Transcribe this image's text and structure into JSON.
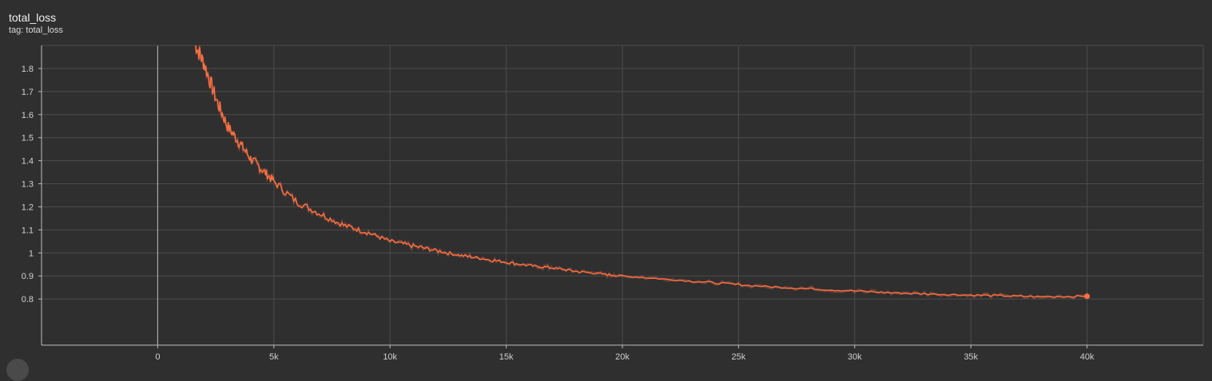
{
  "card": {
    "title": "total_loss",
    "tag": "tag: total_loss"
  },
  "colors": {
    "background": "#2f2f2f",
    "grid": "#4c4c4c",
    "axis": "#bdbdbd",
    "series": "#ff7043"
  },
  "chart_data": {
    "type": "line",
    "title": "total_loss",
    "xlabel": "",
    "ylabel": "",
    "xlim": [
      -5000,
      45000
    ],
    "ylim": [
      0.6,
      1.9
    ],
    "xticks": [
      0,
      5000,
      10000,
      15000,
      20000,
      25000,
      30000,
      35000,
      40000
    ],
    "xtick_labels": [
      "0",
      "5k",
      "10k",
      "15k",
      "20k",
      "25k",
      "30k",
      "35k",
      "40k"
    ],
    "yticks": [
      0.8,
      0.9,
      1.0,
      1.1,
      1.2,
      1.3,
      1.4,
      1.5,
      1.6,
      1.7,
      1.8
    ],
    "ytick_labels": [
      "0.8",
      "0.9",
      "1",
      "1.1",
      "1.2",
      "1.3",
      "1.4",
      "1.5",
      "1.6",
      "1.7",
      "1.8"
    ],
    "grid": true,
    "series": [
      {
        "x": [
          1600,
          2000,
          2500,
          3000,
          3500,
          4000,
          4500,
          5000,
          6000,
          7000,
          8000,
          9000,
          10000,
          11000,
          12000,
          13000,
          14000,
          15000,
          16000,
          17000,
          18000,
          19000,
          20000,
          22000,
          24000,
          26000,
          28000,
          30000,
          32000,
          34000,
          36000,
          38000,
          40000
        ],
        "y": [
          1.91,
          1.82,
          1.67,
          1.55,
          1.48,
          1.41,
          1.36,
          1.31,
          1.22,
          1.17,
          1.12,
          1.09,
          1.05,
          1.03,
          1.01,
          0.99,
          0.975,
          0.96,
          0.945,
          0.935,
          0.92,
          0.91,
          0.9,
          0.885,
          0.87,
          0.855,
          0.845,
          0.835,
          0.825,
          0.82,
          0.815,
          0.81,
          0.812
        ]
      }
    ],
    "last_point": {
      "x": 40000,
      "y": 0.812
    }
  }
}
